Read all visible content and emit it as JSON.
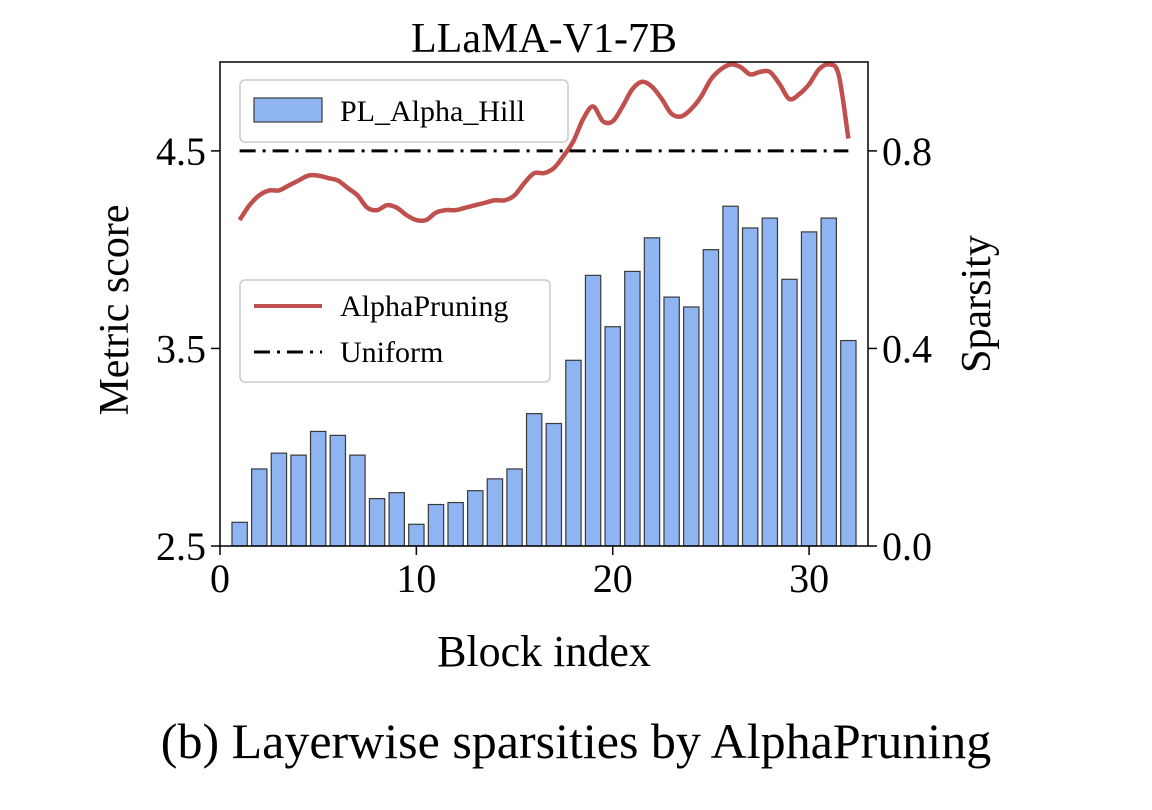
{
  "caption": "(b) Layerwise sparsities by AlphaPruning",
  "chart_data": {
    "type": "bar",
    "title": "LLaMA-V1-7B",
    "xlabel": "Block index",
    "ylabel": "Metric score",
    "y2label": "Sparsity",
    "xlim": [
      0,
      33
    ],
    "ylim": [
      2.5,
      4.95
    ],
    "y2lim": [
      0.0,
      0.98
    ],
    "xticks": [
      "0",
      "10",
      "20",
      "30"
    ],
    "yticks": [
      "2.5",
      "3.5",
      "4.5"
    ],
    "y2ticks": [
      "0.0",
      "0.4",
      "0.8"
    ],
    "grid": false,
    "bar_color": "#8fb4f2",
    "legend_bars": {
      "position": "upper-left",
      "entries": [
        "PL_Alpha_Hill"
      ]
    },
    "legend_lines": {
      "position": "center-left",
      "entries": [
        "AlphaPruning",
        "Uniform"
      ]
    },
    "series": [
      {
        "name": "PL_Alpha_Hill",
        "kind": "bar",
        "axis": "left",
        "color": "#8fb4f2",
        "x": [
          1,
          2,
          3,
          4,
          5,
          6,
          7,
          8,
          9,
          10,
          11,
          12,
          13,
          14,
          15,
          16,
          17,
          18,
          19,
          20,
          21,
          22,
          23,
          24,
          25,
          26,
          27,
          28,
          29,
          30,
          31,
          32
        ],
        "values": [
          2.62,
          2.89,
          2.97,
          2.96,
          3.08,
          3.06,
          2.96,
          2.74,
          2.77,
          2.61,
          2.71,
          2.72,
          2.78,
          2.84,
          2.89,
          3.17,
          3.12,
          3.44,
          3.87,
          3.61,
          3.89,
          4.06,
          3.76,
          3.71,
          4.0,
          4.22,
          4.11,
          4.16,
          3.85,
          4.09,
          4.16,
          3.54
        ]
      },
      {
        "name": "AlphaPruning",
        "kind": "line",
        "axis": "right",
        "color": "#c0504d",
        "x": [
          1,
          1.5,
          2,
          2.5,
          3,
          3.5,
          4,
          4.5,
          5,
          5.5,
          6,
          6.5,
          7,
          7.5,
          8,
          8.5,
          9,
          9.5,
          10,
          10.5,
          11,
          11.5,
          12,
          12.5,
          13,
          13.5,
          14,
          14.5,
          15,
          15.5,
          16,
          16.5,
          17,
          17.5,
          18,
          18.5,
          19,
          19.5,
          20,
          20.5,
          21,
          21.5,
          22,
          22.5,
          23,
          23.5,
          24,
          24.5,
          25,
          25.5,
          26,
          26.5,
          27,
          27.5,
          28,
          28.5,
          29,
          29.5,
          30,
          30.5,
          31,
          31.5,
          32
        ],
        "values": [
          0.66,
          0.69,
          0.71,
          0.72,
          0.72,
          0.73,
          0.74,
          0.75,
          0.75,
          0.745,
          0.74,
          0.725,
          0.71,
          0.685,
          0.68,
          0.69,
          0.685,
          0.67,
          0.66,
          0.66,
          0.675,
          0.68,
          0.68,
          0.685,
          0.69,
          0.695,
          0.7,
          0.7,
          0.71,
          0.735,
          0.755,
          0.755,
          0.765,
          0.79,
          0.82,
          0.865,
          0.89,
          0.86,
          0.86,
          0.89,
          0.925,
          0.94,
          0.93,
          0.905,
          0.875,
          0.87,
          0.885,
          0.91,
          0.945,
          0.965,
          0.975,
          0.97,
          0.955,
          0.96,
          0.96,
          0.935,
          0.905,
          0.915,
          0.935,
          0.965,
          0.975,
          0.955,
          0.825
        ]
      },
      {
        "name": "Uniform",
        "kind": "line",
        "axis": "right",
        "color": "#000000",
        "style": "dashdot",
        "x": [
          1,
          32
        ],
        "values": [
          0.8,
          0.8
        ]
      }
    ]
  }
}
